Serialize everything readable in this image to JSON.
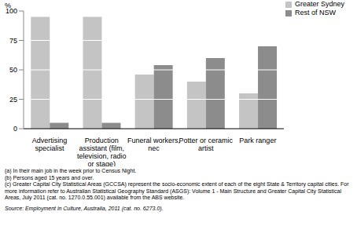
{
  "chart_data": {
    "type": "bar",
    "y_label": "%",
    "categories": [
      "Advertising specialist",
      "Production assistant (film, television, radio or stage)",
      "Funeral workers, nec",
      "Potter or ceramic artist",
      "Park ranger"
    ],
    "series": [
      {
        "name": "Greater Sydney",
        "color": "#c4c4c4",
        "values": [
          95,
          95,
          46,
          40,
          30
        ]
      },
      {
        "name": "Rest of NSW",
        "color": "#8c8c8c",
        "values": [
          5,
          5,
          54,
          60,
          70
        ]
      }
    ],
    "ylim": [
      0,
      100
    ],
    "yticks": [
      0,
      25,
      50,
      75,
      100
    ],
    "grid": true,
    "legend": "top right",
    "notes": [
      "(a) In their main job in the week prior to Census Night.",
      "(b) Persons aged 15 years and over.",
      "(c) Greater Capital City Statistical Areas (GCCSA) represent the socio-economic extent of each of the eight State & Territory capital cities. For more information refer to Australian Statistical Geography Standard (ASGS): Volume 1 - Main Structure and Greater Capital City Statistical Areas, July 2011 (cat. no. 1270.0.55.001) available from the ABS website."
    ],
    "source": "Source: Employment in Culture, Australia, 2011 (cat. no. 6273.0)."
  }
}
